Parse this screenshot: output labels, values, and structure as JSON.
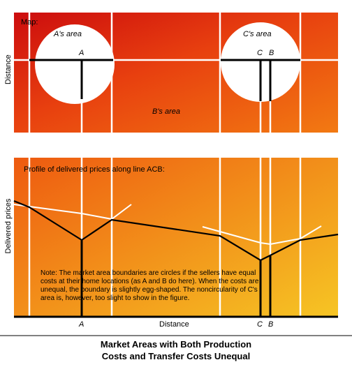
{
  "map": {
    "title": "Map:",
    "a_area": "A's area",
    "c_area": "C's area",
    "b_area": "B's area",
    "ylabel": "Distance",
    "point_a": "A",
    "point_c": "C",
    "point_b": "B"
  },
  "profile": {
    "title": "Profile of delivered prices along line ACB:",
    "ylabel": "Delivered prices",
    "xlabel": "Distance",
    "tick_a": "A",
    "tick_c": "C",
    "tick_b": "B",
    "note": [
      "Note:  The market area boundaries are circles if the sellers have equal",
      "costs at their home locations (as A and B do here).  When the costs are",
      "unequal, the boundary is slightly egg-shaped. The noncircularity of C's",
      "area is, however, too slight to show in the figure."
    ]
  },
  "caption": {
    "line1": "Market Areas with Both Production",
    "line2": "Costs and Transfer Costs Unequal"
  },
  "colors": {
    "top_dark": "#d01010",
    "mid_orange": "#f07010",
    "bottom_yellow": "#f5c020",
    "white_curve": "#ffffff",
    "black_curve": "#000000"
  }
}
